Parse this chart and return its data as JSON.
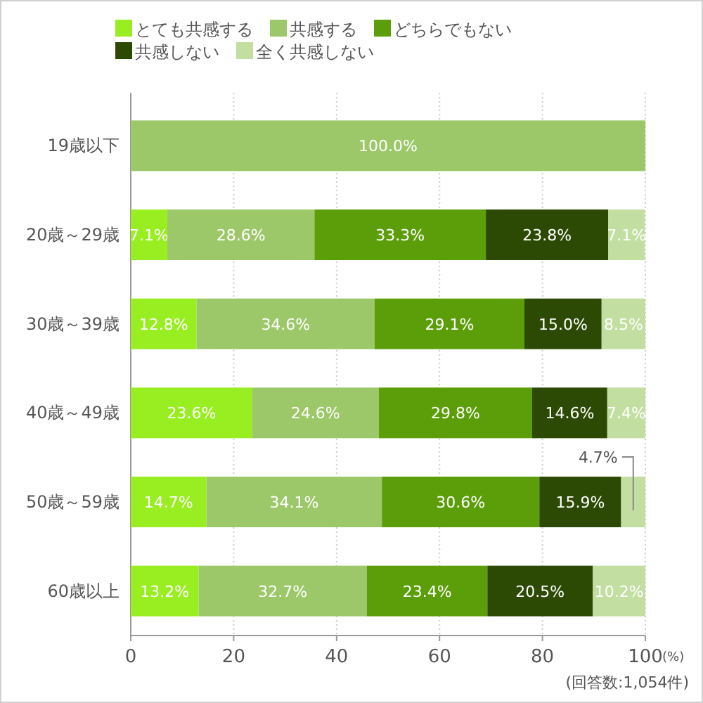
{
  "chart_data": {
    "type": "bar",
    "orientation": "horizontal",
    "stacked": true,
    "categories": [
      "19歳以下",
      "20歳～29歳",
      "30歳～39歳",
      "40歳～49歳",
      "50歳～59歳",
      "60歳以上"
    ],
    "series": [
      {
        "name": "とても共感する",
        "color": "#99ee22",
        "values": [
          null,
          7.1,
          12.8,
          23.6,
          14.7,
          13.2
        ],
        "value_labels": [
          null,
          "7.1%",
          "12.8%",
          "23.6%",
          "14.7%",
          "13.2%"
        ]
      },
      {
        "name": "共感する",
        "color": "#9dc86a",
        "values": [
          100,
          28.6,
          34.6,
          24.6,
          34.1,
          32.7
        ],
        "value_labels": [
          "100.0%",
          "28.6%",
          "34.6%",
          "24.6%",
          "34.1%",
          "32.7%"
        ]
      },
      {
        "name": "どちらでもない",
        "color": "#5c9e0a",
        "values": [
          null,
          33.3,
          29.1,
          29.8,
          30.6,
          23.4
        ],
        "value_labels": [
          null,
          "33.3%",
          "29.1%",
          "29.8%",
          "30.6%",
          "23.4%"
        ]
      },
      {
        "name": "共感しない",
        "color": "#2d4a04",
        "values": [
          null,
          23.8,
          15.0,
          14.6,
          15.9,
          20.5
        ],
        "value_labels": [
          null,
          "23.8%",
          "15.0%",
          "14.6%",
          "15.9%",
          "20.5%"
        ]
      },
      {
        "name": "全く共感しない",
        "color": "#c2dea0",
        "values": [
          null,
          7.1,
          8.5,
          7.4,
          4.7,
          10.2
        ],
        "value_labels": [
          null,
          "7.1%",
          "8.5%",
          "7.4%",
          "4.7%",
          "10.2%"
        ]
      }
    ],
    "xlim": [
      0,
      100
    ],
    "xticks": [
      0,
      20,
      40,
      60,
      80,
      100
    ],
    "grid": "x",
    "legend": "top",
    "xlabel": "(%)",
    "annotations": [
      "(回答数:1,054件)"
    ]
  }
}
